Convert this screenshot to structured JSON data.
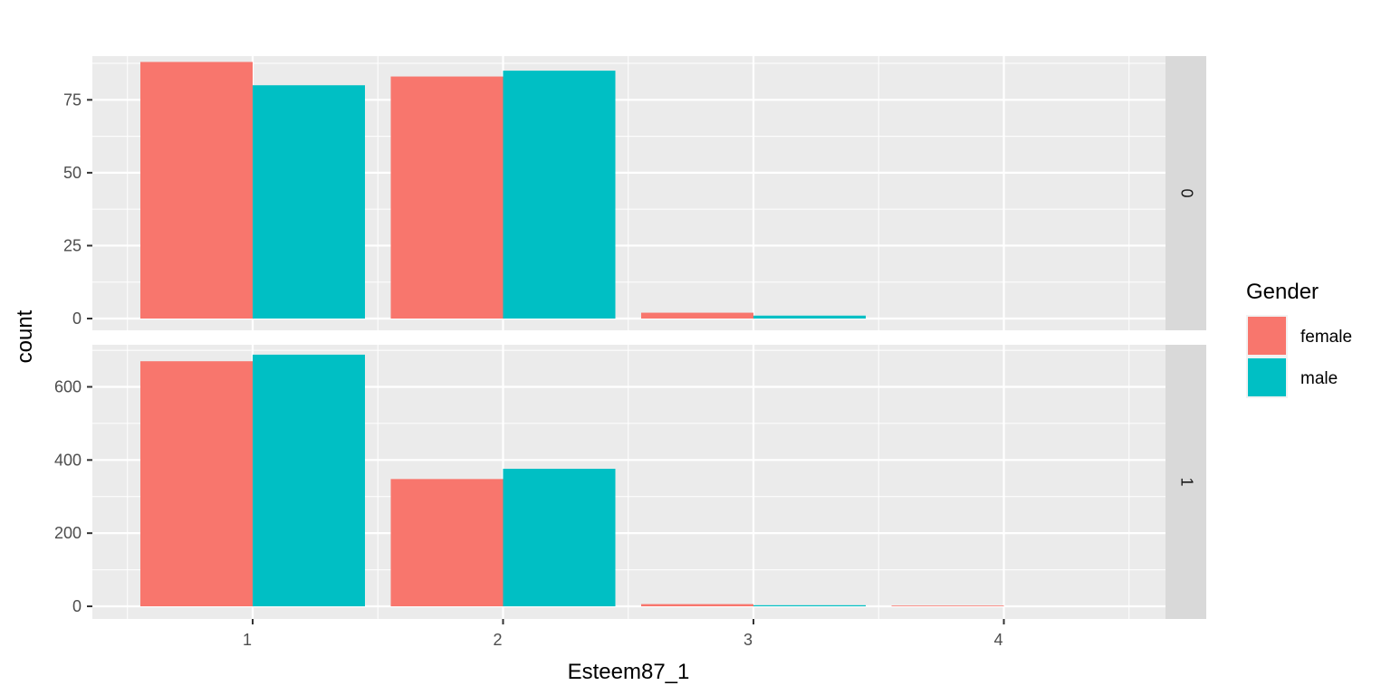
{
  "chart_data": {
    "type": "bar",
    "facet_variable": "",
    "xlabel": "Esteem87_1",
    "ylabel": "count",
    "categories": [
      "1",
      "2",
      "3",
      "4"
    ],
    "legend": {
      "title": "Gender",
      "position": "right",
      "entries": [
        {
          "name": "female",
          "color": "#F8766D"
        },
        {
          "name": "male",
          "color": "#00BFC4"
        }
      ]
    },
    "panels": [
      {
        "strip": "0",
        "ylim": [
          0,
          90
        ],
        "yticks": [
          0,
          25,
          50,
          75
        ],
        "series": [
          {
            "name": "female",
            "values": [
              88,
              83,
              2,
              0
            ]
          },
          {
            "name": "male",
            "values": [
              80,
              85,
              1,
              0
            ]
          }
        ]
      },
      {
        "strip": "1",
        "ylim": [
          0,
          715
        ],
        "yticks": [
          0,
          200,
          400,
          600
        ],
        "series": [
          {
            "name": "female",
            "values": [
              670,
              348,
              6,
              2
            ]
          },
          {
            "name": "male",
            "values": [
              688,
              376,
              3,
              0
            ]
          }
        ]
      }
    ],
    "grid": true,
    "style": {
      "panel_bg": "#EBEBEB",
      "strip_bg": "#D9D9D9",
      "grid_color": "#FFFFFF"
    }
  }
}
